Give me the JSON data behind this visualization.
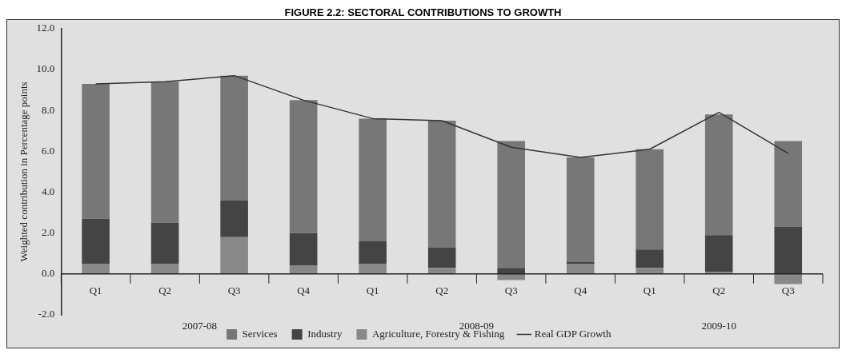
{
  "chart_data": {
    "type": "bar",
    "title": "FIGURE 2.2: SECTORAL CONTRIBUTIONS TO GROWTH",
    "ylabel": "Weighted contribution in Percentage points",
    "categories": [
      "Q1",
      "Q2",
      "Q3",
      "Q4",
      "Q1",
      "Q2",
      "Q3",
      "Q4",
      "Q1",
      "Q2",
      "Q3"
    ],
    "annotations": [
      "2007-08",
      "2008-09",
      "2009-10"
    ],
    "stacked": true,
    "series": [
      {
        "name": "Agriculture, Forestry & Fishing",
        "color": "#888888",
        "values": [
          0.5,
          0.5,
          1.8,
          0.4,
          0.5,
          0.3,
          -0.3,
          0.5,
          0.3,
          0.1,
          -0.5
        ]
      },
      {
        "name": "Industry",
        "color": "#444444",
        "values": [
          2.2,
          2.0,
          1.8,
          1.6,
          1.1,
          1.0,
          0.3,
          0.1,
          0.9,
          1.8,
          2.3
        ]
      },
      {
        "name": "Services",
        "color": "#777777",
        "values": [
          6.6,
          6.9,
          6.1,
          6.5,
          6.0,
          6.2,
          6.2,
          5.1,
          4.9,
          5.9,
          4.2
        ]
      },
      {
        "name": "Real GDP Growth",
        "type": "line",
        "color": "#333333",
        "values": [
          9.3,
          9.4,
          9.7,
          8.5,
          7.6,
          7.5,
          6.2,
          5.7,
          6.1,
          7.9,
          5.9
        ]
      }
    ],
    "ylim": [
      -2,
      12
    ],
    "yticks": [
      {
        "value": -2,
        "label": "-2.0"
      },
      {
        "value": 0,
        "label": "0.0"
      },
      {
        "value": 2,
        "label": "2.0"
      },
      {
        "value": 4,
        "label": "4.0"
      },
      {
        "value": 6,
        "label": "6.0"
      },
      {
        "value": 8,
        "label": "8.0"
      },
      {
        "value": 10,
        "label": "10.0"
      },
      {
        "value": 12,
        "label": "12.0"
      }
    ],
    "grid": false,
    "legend": "bottom",
    "marker": "none",
    "line_style": "solid"
  }
}
